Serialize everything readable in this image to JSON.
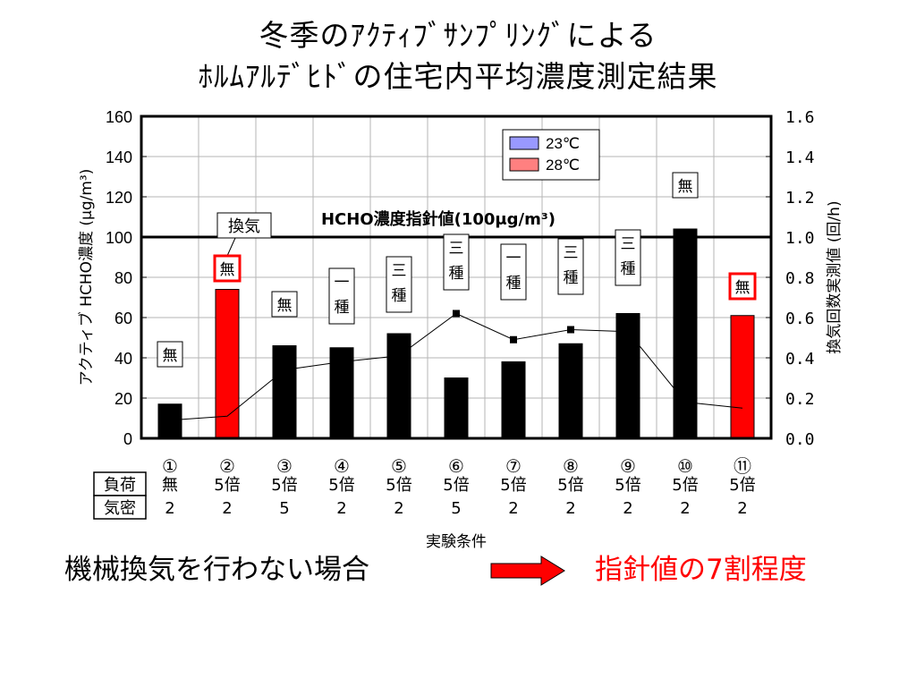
{
  "title": {
    "line1": "冬季のｱｸﾃｨﾌﾞｻﾝﾌﾟﾘﾝｸﾞによる",
    "line2": "ﾎﾙﾑｱﾙﾃﾞﾋﾄﾞの住宅内平均濃度測定結果"
  },
  "chart_data": {
    "type": "bar",
    "y_axis_label": "アクティブ HCHO濃度 (μg/m³)",
    "y2_axis_label": "換気回数実測値 (回/h)",
    "x_axis_label": "実験条件",
    "ylim": [
      0,
      160
    ],
    "y_ticks": [
      "0",
      "20",
      "40",
      "60",
      "80",
      "100",
      "120",
      "140",
      "160"
    ],
    "y2lim": [
      0,
      1.6
    ],
    "y2_ticks": [
      "0.0",
      "0.2",
      "0.4",
      "0.6",
      "0.8",
      "1.0",
      "1.2",
      "1.4",
      "1.6"
    ],
    "grid": true,
    "legend": {
      "position": "top-right",
      "entries": [
        {
          "name": "23℃",
          "color": "#9999ff"
        },
        {
          "name": "28℃",
          "color": "#ff8080"
        }
      ]
    },
    "guideline": {
      "value": 100,
      "label": "HCHO濃度指針値(100μg/m³)"
    },
    "categories": [
      "①",
      "②",
      "③",
      "④",
      "⑤",
      "⑥",
      "⑦",
      "⑧",
      "⑨",
      "⑩",
      "⑪"
    ],
    "series": [
      {
        "values": [
          17,
          74,
          46,
          45,
          52,
          30,
          38,
          47,
          62,
          104,
          61
        ],
        "colors": [
          "#000000",
          "#ff0000",
          "#000000",
          "#000000",
          "#000000",
          "#000000",
          "#000000",
          "#000000",
          "#000000",
          "#000000",
          "#ff0000"
        ]
      },
      {
        "type": "line",
        "axis": "right",
        "values": [
          0.09,
          0.11,
          0.34,
          0.38,
          0.41,
          0.62,
          0.49,
          0.54,
          0.53,
          0.18,
          0.15
        ],
        "markers": [
          false,
          false,
          false,
          false,
          false,
          true,
          true,
          true,
          false,
          false,
          false
        ]
      }
    ],
    "ventilation_labels": [
      "無",
      "無",
      "無",
      "一\n種",
      "三\n種",
      "三\n種",
      "一\n種",
      "三\n種",
      "三\n種",
      "無",
      "無"
    ],
    "ventilation_highlight": [
      false,
      true,
      false,
      false,
      false,
      false,
      false,
      false,
      false,
      false,
      true
    ],
    "ventilation_header": "換気",
    "table": {
      "rows": [
        {
          "label": "負荷",
          "values": [
            "無",
            "5倍",
            "5倍",
            "5倍",
            "5倍",
            "5倍",
            "5倍",
            "5倍",
            "5倍",
            "5倍",
            "5倍"
          ]
        },
        {
          "label": "気密",
          "values": [
            "2",
            "2",
            "5",
            "2",
            "2",
            "5",
            "2",
            "2",
            "2",
            "2",
            "2"
          ]
        }
      ]
    }
  },
  "conclusion": {
    "left": "機械換気を行わない場合",
    "right": "指針値の7割程度",
    "arrow_color": "#ff0000"
  }
}
